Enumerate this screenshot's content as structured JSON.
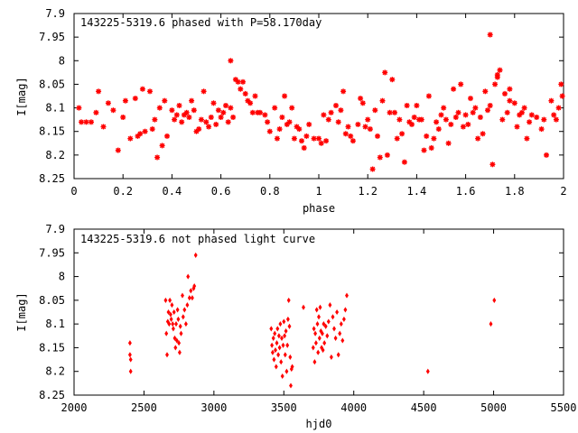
{
  "chart_data": [
    {
      "type": "scatter",
      "title": "143225-5319.6 phased with P=58.170day",
      "xlabel": "phase",
      "ylabel": "I[mag]",
      "xlim": [
        0,
        2
      ],
      "ylim": [
        7.9,
        8.25
      ],
      "y_inverted": true,
      "xticks": [
        "0",
        "0.2",
        "0.4",
        "0.6",
        "0.8",
        "1",
        "1.2",
        "1.4",
        "1.6",
        "1.8",
        "2"
      ],
      "yticks": [
        "7.9",
        "7.95",
        "8",
        "8.05",
        "8.1",
        "8.15",
        "8.2",
        "8.25"
      ],
      "marker": "star",
      "color": "#ff0000",
      "grid": false,
      "points": [
        [
          0.02,
          8.1
        ],
        [
          0.03,
          8.13
        ],
        [
          0.05,
          8.13
        ],
        [
          0.07,
          8.13
        ],
        [
          0.09,
          8.11
        ],
        [
          0.1,
          8.065
        ],
        [
          0.12,
          8.14
        ],
        [
          0.14,
          8.09
        ],
        [
          0.16,
          8.105
        ],
        [
          0.18,
          8.19
        ],
        [
          0.2,
          8.12
        ],
        [
          0.21,
          8.085
        ],
        [
          0.23,
          8.165
        ],
        [
          0.25,
          8.08
        ],
        [
          0.26,
          8.16
        ],
        [
          0.27,
          8.155
        ],
        [
          0.28,
          8.06
        ],
        [
          0.29,
          8.15
        ],
        [
          0.31,
          8.065
        ],
        [
          0.32,
          8.145
        ],
        [
          0.33,
          8.125
        ],
        [
          0.34,
          8.205
        ],
        [
          0.35,
          8.1
        ],
        [
          0.36,
          8.18
        ],
        [
          0.37,
          8.085
        ],
        [
          0.38,
          8.16
        ],
        [
          0.4,
          8.105
        ],
        [
          0.41,
          8.125
        ],
        [
          0.42,
          8.115
        ],
        [
          0.43,
          8.095
        ],
        [
          0.44,
          8.13
        ],
        [
          0.45,
          8.115
        ],
        [
          0.46,
          8.11
        ],
        [
          0.47,
          8.12
        ],
        [
          0.48,
          8.085
        ],
        [
          0.49,
          8.105
        ],
        [
          0.5,
          8.15
        ],
        [
          0.51,
          8.145
        ],
        [
          0.52,
          8.125
        ],
        [
          0.53,
          8.065
        ],
        [
          0.54,
          8.13
        ],
        [
          0.55,
          8.14
        ],
        [
          0.56,
          8.12
        ],
        [
          0.57,
          8.09
        ],
        [
          0.58,
          8.135
        ],
        [
          0.59,
          8.105
        ],
        [
          0.6,
          8.12
        ],
        [
          0.61,
          8.11
        ],
        [
          0.62,
          8.095
        ],
        [
          0.63,
          8.13
        ],
        [
          0.64,
          8.1
        ],
        [
          0.65,
          8.12
        ],
        [
          0.66,
          8.04
        ],
        [
          0.67,
          8.045
        ],
        [
          0.68,
          8.06
        ],
        [
          0.69,
          8.045
        ],
        [
          0.7,
          8.07
        ],
        [
          0.71,
          8.085
        ],
        [
          0.72,
          8.09
        ],
        [
          0.73,
          8.11
        ],
        [
          0.74,
          8.075
        ],
        [
          0.75,
          8.11
        ],
        [
          0.76,
          8.11
        ],
        [
          0.78,
          8.115
        ],
        [
          0.79,
          8.13
        ],
        [
          0.8,
          8.15
        ],
        [
          0.82,
          8.1
        ],
        [
          0.83,
          8.165
        ],
        [
          0.84,
          8.145
        ],
        [
          0.85,
          8.12
        ],
        [
          0.86,
          8.075
        ],
        [
          0.87,
          8.135
        ],
        [
          0.88,
          8.13
        ],
        [
          0.89,
          8.1
        ],
        [
          0.9,
          8.165
        ],
        [
          0.91,
          8.14
        ],
        [
          0.92,
          8.145
        ],
        [
          0.93,
          8.17
        ],
        [
          0.94,
          8.185
        ],
        [
          0.95,
          8.16
        ],
        [
          0.96,
          8.135
        ],
        [
          0.98,
          8.165
        ],
        [
          1.0,
          8.165
        ],
        [
          1.01,
          8.175
        ],
        [
          1.02,
          8.115
        ],
        [
          1.03,
          8.17
        ],
        [
          1.04,
          8.125
        ],
        [
          1.05,
          8.11
        ],
        [
          1.07,
          8.095
        ],
        [
          1.08,
          8.13
        ],
        [
          1.09,
          8.105
        ],
        [
          1.1,
          8.065
        ],
        [
          1.11,
          8.155
        ],
        [
          1.12,
          8.14
        ],
        [
          1.13,
          8.16
        ],
        [
          1.14,
          8.17
        ],
        [
          1.16,
          8.135
        ],
        [
          1.17,
          8.08
        ],
        [
          1.18,
          8.09
        ],
        [
          1.19,
          8.14
        ],
        [
          1.2,
          8.125
        ],
        [
          1.21,
          8.145
        ],
        [
          1.22,
          8.23
        ],
        [
          1.23,
          8.105
        ],
        [
          1.24,
          8.16
        ],
        [
          1.25,
          8.205
        ],
        [
          1.26,
          8.085
        ],
        [
          1.27,
          8.025
        ],
        [
          1.28,
          8.2
        ],
        [
          1.29,
          8.11
        ],
        [
          1.3,
          8.04
        ],
        [
          1.31,
          8.11
        ],
        [
          1.32,
          8.165
        ],
        [
          1.33,
          8.125
        ],
        [
          1.34,
          8.155
        ],
        [
          1.35,
          8.215
        ],
        [
          1.36,
          8.095
        ],
        [
          1.37,
          8.13
        ],
        [
          1.38,
          8.135
        ],
        [
          1.39,
          8.12
        ],
        [
          1.4,
          8.095
        ],
        [
          1.41,
          8.125
        ],
        [
          1.42,
          8.125
        ],
        [
          1.43,
          8.19
        ],
        [
          1.44,
          8.16
        ],
        [
          1.45,
          8.075
        ],
        [
          1.46,
          8.185
        ],
        [
          1.47,
          8.165
        ],
        [
          1.48,
          8.13
        ],
        [
          1.49,
          8.145
        ],
        [
          1.5,
          8.115
        ],
        [
          1.51,
          8.1
        ],
        [
          1.52,
          8.125
        ],
        [
          1.53,
          8.175
        ],
        [
          1.54,
          8.135
        ],
        [
          1.55,
          8.06
        ],
        [
          1.56,
          8.12
        ],
        [
          1.57,
          8.11
        ],
        [
          1.58,
          8.05
        ],
        [
          1.59,
          8.14
        ],
        [
          1.6,
          8.115
        ],
        [
          1.61,
          8.135
        ],
        [
          1.62,
          8.08
        ],
        [
          1.63,
          8.11
        ],
        [
          1.64,
          8.1
        ],
        [
          1.65,
          8.165
        ],
        [
          1.66,
          8.12
        ],
        [
          1.67,
          8.155
        ],
        [
          1.68,
          8.065
        ],
        [
          1.69,
          8.105
        ],
        [
          1.7,
          8.095
        ],
        [
          1.71,
          8.22
        ],
        [
          1.72,
          8.05
        ],
        [
          1.73,
          8.035
        ],
        [
          1.74,
          8.02
        ],
        [
          1.75,
          8.125
        ],
        [
          1.76,
          8.07
        ],
        [
          1.77,
          8.11
        ],
        [
          1.78,
          8.085
        ],
        [
          1.8,
          8.09
        ],
        [
          1.81,
          8.14
        ],
        [
          1.82,
          8.115
        ],
        [
          1.83,
          8.11
        ],
        [
          1.84,
          8.1
        ],
        [
          1.85,
          8.165
        ],
        [
          1.86,
          8.13
        ],
        [
          1.87,
          8.115
        ],
        [
          1.89,
          8.12
        ],
        [
          1.91,
          8.145
        ],
        [
          1.92,
          8.125
        ],
        [
          1.93,
          8.2
        ],
        [
          1.95,
          8.085
        ],
        [
          1.96,
          8.115
        ],
        [
          1.97,
          8.125
        ],
        [
          1.98,
          8.1
        ],
        [
          1.99,
          8.05
        ],
        [
          1.995,
          8.075
        ],
        [
          0.64,
          8.0
        ],
        [
          1.7,
          7.945
        ],
        [
          1.73,
          8.03
        ],
        [
          1.78,
          8.06
        ]
      ]
    },
    {
      "type": "scatter",
      "title": "143225-5319.6 not phased light curve",
      "xlabel": "hjd0",
      "ylabel": "I[mag]",
      "xlim": [
        2000,
        5500
      ],
      "ylim": [
        7.9,
        8.25
      ],
      "y_inverted": true,
      "xticks": [
        "2000",
        "2500",
        "3000",
        "3500",
        "4000",
        "4500",
        "5000",
        "5500"
      ],
      "yticks": [
        "7.9",
        "7.95",
        "8",
        "8.05",
        "8.1",
        "8.15",
        "8.2",
        "8.25"
      ],
      "marker": "diamond",
      "color": "#ff0000",
      "grid": false,
      "points": [
        [
          2400,
          8.14
        ],
        [
          2400,
          8.165
        ],
        [
          2405,
          8.175
        ],
        [
          2405,
          8.2
        ],
        [
          2655,
          8.05
        ],
        [
          2660,
          8.12
        ],
        [
          2665,
          8.165
        ],
        [
          2670,
          8.095
        ],
        [
          2675,
          8.075
        ],
        [
          2680,
          8.1
        ],
        [
          2685,
          8.05
        ],
        [
          2690,
          8.08
        ],
        [
          2695,
          8.09
        ],
        [
          2700,
          8.06
        ],
        [
          2705,
          8.1
        ],
        [
          2710,
          8.11
        ],
        [
          2715,
          8.075
        ],
        [
          2720,
          8.13
        ],
        [
          2725,
          8.15
        ],
        [
          2730,
          8.1
        ],
        [
          2735,
          8.135
        ],
        [
          2740,
          8.07
        ],
        [
          2745,
          8.09
        ],
        [
          2750,
          8.14
        ],
        [
          2755,
          8.16
        ],
        [
          2760,
          8.105
        ],
        [
          2765,
          8.12
        ],
        [
          2775,
          8.04
        ],
        [
          2780,
          8.085
        ],
        [
          2790,
          8.07
        ],
        [
          2800,
          8.1
        ],
        [
          2810,
          8.06
        ],
        [
          2815,
          8.0
        ],
        [
          2825,
          8.045
        ],
        [
          2835,
          8.03
        ],
        [
          2845,
          8.045
        ],
        [
          2855,
          8.025
        ],
        [
          2860,
          8.02
        ],
        [
          2870,
          7.955
        ],
        [
          3410,
          8.11
        ],
        [
          3415,
          8.145
        ],
        [
          3420,
          8.16
        ],
        [
          3425,
          8.13
        ],
        [
          3430,
          8.175
        ],
        [
          3435,
          8.12
        ],
        [
          3440,
          8.155
        ],
        [
          3445,
          8.19
        ],
        [
          3450,
          8.14
        ],
        [
          3455,
          8.11
        ],
        [
          3460,
          8.165
        ],
        [
          3465,
          8.125
        ],
        [
          3470,
          8.15
        ],
        [
          3475,
          8.1
        ],
        [
          3480,
          8.18
        ],
        [
          3485,
          8.13
        ],
        [
          3490,
          8.21
        ],
        [
          3495,
          8.145
        ],
        [
          3500,
          8.095
        ],
        [
          3505,
          8.125
        ],
        [
          3510,
          8.165
        ],
        [
          3515,
          8.115
        ],
        [
          3520,
          8.2
        ],
        [
          3525,
          8.145
        ],
        [
          3530,
          8.09
        ],
        [
          3535,
          8.05
        ],
        [
          3540,
          8.105
        ],
        [
          3545,
          8.17
        ],
        [
          3550,
          8.23
        ],
        [
          3555,
          8.195
        ],
        [
          3560,
          8.19
        ],
        [
          3640,
          8.065
        ],
        [
          3710,
          8.15
        ],
        [
          3715,
          8.11
        ],
        [
          3720,
          8.18
        ],
        [
          3725,
          8.12
        ],
        [
          3730,
          8.14
        ],
        [
          3735,
          8.07
        ],
        [
          3740,
          8.1
        ],
        [
          3745,
          8.16
        ],
        [
          3750,
          8.085
        ],
        [
          3755,
          8.13
        ],
        [
          3760,
          8.065
        ],
        [
          3765,
          8.115
        ],
        [
          3770,
          8.15
        ],
        [
          3775,
          8.12
        ],
        [
          3780,
          8.155
        ],
        [
          3785,
          8.1
        ],
        [
          3790,
          8.14
        ],
        [
          3800,
          8.105
        ],
        [
          3810,
          8.125
        ],
        [
          3820,
          8.095
        ],
        [
          3830,
          8.06
        ],
        [
          3840,
          8.17
        ],
        [
          3850,
          8.085
        ],
        [
          3860,
          8.11
        ],
        [
          3870,
          8.13
        ],
        [
          3880,
          8.075
        ],
        [
          3890,
          8.165
        ],
        [
          3900,
          8.12
        ],
        [
          3910,
          8.1
        ],
        [
          3920,
          8.135
        ],
        [
          3930,
          8.09
        ],
        [
          3940,
          8.07
        ],
        [
          3950,
          8.04
        ],
        [
          4530,
          8.2
        ],
        [
          4980,
          8.1
        ],
        [
          5005,
          8.05
        ]
      ]
    }
  ]
}
